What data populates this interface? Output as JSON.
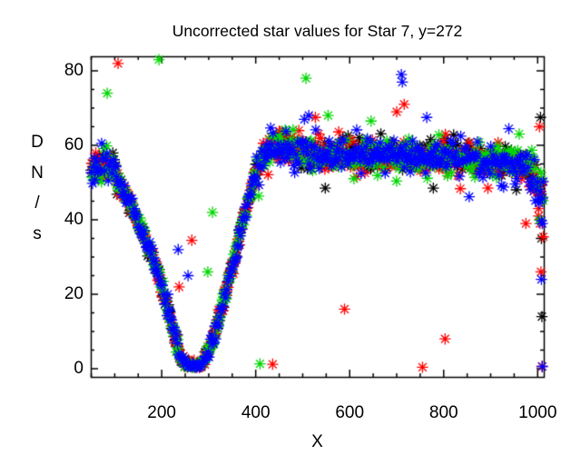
{
  "figure": {
    "background": "#ffffff",
    "axis_color": "#000000"
  },
  "chart_data": {
    "type": "scatter",
    "title": "Uncorrected star values for Star 7, y=272",
    "xlabel": "X",
    "ylabel": "DN/s",
    "ylabel_stacked": [
      "D",
      "N",
      "/",
      "s"
    ],
    "xlim": [
      49,
      1013
    ],
    "ylim": [
      -2.2,
      83.9
    ],
    "xticks": [
      200,
      400,
      600,
      800,
      1000
    ],
    "yticks": [
      0,
      20,
      40,
      60,
      80
    ],
    "x_minor_step": 50,
    "y_minor_step": 5,
    "grid": false,
    "legend": "none",
    "marker": "asterisk",
    "series": [
      {
        "name": "black",
        "color": "#000000"
      },
      {
        "name": "red",
        "color": "#ff0000"
      },
      {
        "name": "green",
        "color": "#00d800"
      },
      {
        "name": "blue",
        "color": "#0000ff"
      }
    ],
    "trend": [
      [
        49,
        52.5
      ],
      [
        58,
        53.5
      ],
      [
        68,
        54.5
      ],
      [
        78,
        55.5
      ],
      [
        88,
        55
      ],
      [
        98,
        53
      ],
      [
        110,
        49.5
      ],
      [
        124,
        46
      ],
      [
        138,
        43
      ],
      [
        152,
        39
      ],
      [
        166,
        34.5
      ],
      [
        180,
        30
      ],
      [
        194,
        25
      ],
      [
        206,
        19.5
      ],
      [
        216,
        14.5
      ],
      [
        226,
        9.5
      ],
      [
        234,
        5.5
      ],
      [
        242,
        2.8
      ],
      [
        250,
        1.2
      ],
      [
        258,
        0.6
      ],
      [
        268,
        0.5
      ],
      [
        278,
        1
      ],
      [
        288,
        2.2
      ],
      [
        297,
        4.2
      ],
      [
        306,
        7
      ],
      [
        315,
        10.5
      ],
      [
        325,
        15
      ],
      [
        336,
        20.5
      ],
      [
        347,
        26
      ],
      [
        358,
        31.5
      ],
      [
        369,
        37
      ],
      [
        380,
        43
      ],
      [
        390,
        48
      ],
      [
        400,
        52.5
      ],
      [
        410,
        56
      ],
      [
        420,
        58.5
      ],
      [
        432,
        59.5
      ],
      [
        450,
        59.5
      ],
      [
        470,
        59
      ],
      [
        495,
        59
      ],
      [
        520,
        58.5
      ],
      [
        545,
        57.5
      ],
      [
        570,
        57.5
      ],
      [
        595,
        58
      ],
      [
        620,
        57.5
      ],
      [
        645,
        57.5
      ],
      [
        670,
        57
      ],
      [
        695,
        57.5
      ],
      [
        720,
        57
      ],
      [
        745,
        56.5
      ],
      [
        770,
        56.5
      ],
      [
        795,
        57
      ],
      [
        820,
        56.5
      ],
      [
        845,
        56
      ],
      [
        870,
        56.5
      ],
      [
        895,
        56
      ],
      [
        920,
        55.5
      ],
      [
        945,
        55.5
      ],
      [
        962,
        55
      ],
      [
        977,
        53.5
      ],
      [
        989,
        52
      ],
      [
        999,
        50
      ],
      [
        1006,
        47.5
      ],
      [
        1010,
        45.5
      ],
      [
        1013,
        44
      ]
    ],
    "scatter": {
      "seed": 20272,
      "x_step": 2.4,
      "sigma_segments": [
        [
          49,
          105,
          2.3
        ],
        [
          105,
          240,
          1.2
        ],
        [
          240,
          290,
          0.8
        ],
        [
          290,
          398,
          1.2
        ],
        [
          398,
          985,
          2.1
        ],
        [
          985,
          1014,
          2.6
        ]
      ]
    },
    "outliers": {
      "black": [
        [
          1006,
          67.5
        ],
        [
          1008,
          35
        ],
        [
          1009,
          14
        ],
        [
          548,
          48.5
        ],
        [
          778,
          48.5
        ]
      ],
      "red": [
        [
          107,
          82
        ],
        [
          264,
          34.5
        ],
        [
          237,
          22
        ],
        [
          436,
          1.2
        ],
        [
          589,
          16
        ],
        [
          755,
          0.4
        ],
        [
          803,
          8
        ],
        [
          716,
          71
        ],
        [
          700,
          69
        ],
        [
          527,
          67.5
        ],
        [
          1004,
          65
        ],
        [
          975,
          39
        ],
        [
          1005,
          39
        ],
        [
          1007,
          26
        ],
        [
          1002,
          41
        ],
        [
          1009,
          0.6
        ]
      ],
      "green": [
        [
          194,
          83
        ],
        [
          84,
          74
        ],
        [
          308,
          42
        ],
        [
          298,
          26
        ],
        [
          409,
          1.3
        ],
        [
          507,
          78
        ],
        [
          554,
          68
        ]
      ],
      "blue": [
        [
          235,
          32
        ],
        [
          256,
          25
        ],
        [
          213,
          20
        ],
        [
          710,
          79
        ],
        [
          712,
          77
        ],
        [
          764,
          67.5
        ],
        [
          513,
          68
        ],
        [
          1002,
          45.5
        ],
        [
          1010,
          39
        ],
        [
          1008,
          24
        ],
        [
          1010,
          0.6
        ]
      ]
    }
  }
}
